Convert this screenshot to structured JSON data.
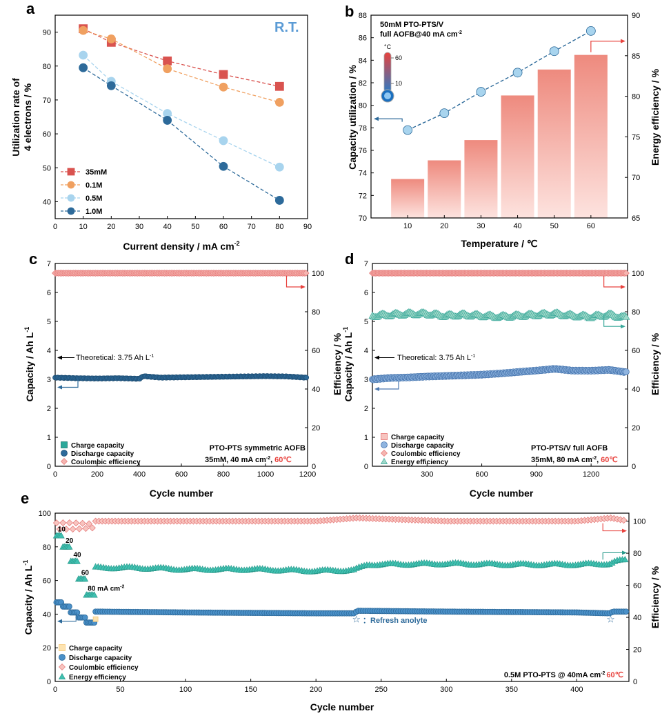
{
  "figure": {
    "panel_labels": [
      "a",
      "b",
      "c",
      "d",
      "e"
    ]
  },
  "colors": {
    "red": "#d9534f",
    "orange": "#f0a060",
    "lightblue": "#a8d4ee",
    "darkblue": "#2d6a9a",
    "pink": "#f08a8a",
    "teal": "#3aa89a",
    "blue": "#5f8fc0",
    "bar": "#ee8c80",
    "axis": "#000000",
    "rt": "#5b9bd5",
    "hot": "#e8423d",
    "yellow": "#f5c97a"
  },
  "chart_data": [
    {
      "panel": "a",
      "type": "line",
      "xlabel": "Current density / mA cm",
      "xlabel_sup": "-2",
      "ylabel": "Utilization rate of|4 electrons / %",
      "xlim": [
        0,
        90
      ],
      "ylim": [
        35,
        95
      ],
      "xticks": [
        0,
        10,
        20,
        30,
        40,
        50,
        60,
        70,
        80,
        90
      ],
      "yticks": [
        40,
        50,
        60,
        70,
        80,
        90
      ],
      "annotation": "R.T.",
      "x": [
        10,
        20,
        40,
        60,
        80
      ],
      "series": [
        {
          "name": "35mM",
          "marker": "square",
          "color": "red",
          "values": [
            91,
            87,
            81.5,
            77.5,
            74
          ]
        },
        {
          "name": "0.1M",
          "marker": "circle",
          "color": "orange",
          "values": [
            90.5,
            88,
            79.2,
            73.8,
            69.3
          ]
        },
        {
          "name": "0.5M",
          "marker": "circle",
          "color": "lightblue",
          "values": [
            83.2,
            75.5,
            66,
            58,
            50.2
          ]
        },
        {
          "name": "1.0M",
          "marker": "circle",
          "color": "darkblue",
          "values": [
            79.5,
            74.2,
            64,
            50.4,
            40.4
          ]
        }
      ]
    },
    {
      "panel": "b",
      "type": "bar+line",
      "xlabel": "Temperature / ℃",
      "ylabel_left": "Capacity utilization / %",
      "ylabel_right": "Energy efficiency / %",
      "text_line1": "50mM PTO-PTS/V",
      "text_line2": "full AOFB@40 mA cm",
      "text_sup": "-2",
      "thermometer_unit": "°C",
      "thermometer_ticks": [
        "60",
        "10"
      ],
      "categories": [
        10,
        20,
        30,
        40,
        50,
        60
      ],
      "xlim": [
        0,
        70
      ],
      "ylim_left": [
        70,
        88
      ],
      "ylim_right": [
        65,
        90
      ],
      "yticks_left": [
        70,
        72,
        74,
        76,
        78,
        80,
        82,
        84,
        86,
        88
      ],
      "yticks_right": [
        65,
        70,
        75,
        80,
        85,
        90
      ],
      "bar_values_energy_efficiency": [
        69.8,
        72.1,
        74.6,
        80.1,
        83.3,
        85.1
      ],
      "line_values_capacity_utilization": [
        77.8,
        79.3,
        81.2,
        82.9,
        84.8,
        86.6
      ]
    },
    {
      "panel": "c",
      "type": "scatter",
      "xlabel": "Cycle number",
      "ylabel_left": "Capacity / Ah L",
      "ylabel_left_sup": "-1",
      "ylabel_right": "Efficiency / %",
      "xlim": [
        0,
        1200
      ],
      "ylim_left": [
        0,
        7
      ],
      "ylim_right": [
        0,
        105
      ],
      "xticks": [
        0,
        200,
        400,
        600,
        800,
        1000,
        1200
      ],
      "yticks_left": [
        0,
        1,
        2,
        3,
        4,
        5,
        6,
        7
      ],
      "yticks_right": [
        0,
        20,
        40,
        60,
        80,
        100
      ],
      "theoretical_label": "Theoretical: 3.75 Ah L",
      "theoretical_sup": "-1",
      "theoretical_value": 3.75,
      "info_line1": "PTO-PTS symmetric AOFB",
      "info_line2": "35mM,  40 mA cm",
      "info_sup": "-2",
      "info_comma": ",",
      "info_temp": "60℃",
      "legend": [
        "Charge capacity",
        "Discharge capacity",
        "Coulombic efficiency"
      ],
      "series": [
        {
          "name": "Charge capacity",
          "axis": "left",
          "color": "teal",
          "marker": "square",
          "x": [
            0,
            100,
            200,
            300,
            400,
            420,
            500,
            600,
            700,
            800,
            900,
            1000,
            1100,
            1190
          ],
          "values": [
            3.07,
            3.05,
            3.04,
            3.05,
            3.03,
            3.12,
            3.07,
            3.08,
            3.09,
            3.1,
            3.11,
            3.12,
            3.11,
            3.07
          ]
        },
        {
          "name": "Discharge capacity",
          "axis": "left",
          "color": "darkblue",
          "marker": "circle",
          "x": [
            0,
            100,
            200,
            300,
            400,
            420,
            500,
            600,
            700,
            800,
            900,
            1000,
            1100,
            1190
          ],
          "values": [
            3.06,
            3.04,
            3.03,
            3.04,
            3.02,
            3.11,
            3.06,
            3.07,
            3.08,
            3.09,
            3.1,
            3.11,
            3.1,
            3.06
          ]
        },
        {
          "name": "Coulombic efficiency",
          "axis": "right",
          "color": "pink",
          "marker": "diamond",
          "x": [
            0,
            200,
            400,
            600,
            800,
            1000,
            1190
          ],
          "values": [
            100,
            100,
            100,
            100,
            100,
            100,
            100
          ]
        }
      ]
    },
    {
      "panel": "d",
      "type": "scatter",
      "xlabel": "Cycle number",
      "ylabel_left": "Capacity / Ah L",
      "ylabel_left_sup": "-1",
      "ylabel_right": "Efficiency / %",
      "xlim": [
        0,
        1400
      ],
      "ylim_left": [
        0,
        7
      ],
      "ylim_right": [
        0,
        105
      ],
      "xticks": [
        300,
        600,
        900,
        1200
      ],
      "yticks_left": [
        0,
        1,
        2,
        3,
        4,
        5,
        6,
        7
      ],
      "yticks_right": [
        0,
        20,
        40,
        60,
        80,
        100
      ],
      "theoretical_label": "Theoretical: 3.75 Ah L",
      "theoretical_sup": "-1",
      "theoretical_value": 3.75,
      "info_line1": "PTO-PTS/V full AOFB",
      "info_line2": "35mM, 80 mA cm",
      "info_sup": "-2",
      "info_comma": ",",
      "info_temp": "60℃",
      "legend": [
        "Charge capacity",
        "Discharge capacity",
        "Coulombic efficiency",
        "Energy efficiency"
      ],
      "series": [
        {
          "name": "Discharge capacity",
          "axis": "left",
          "color": "blue",
          "marker": "circle",
          "x": [
            0,
            100,
            200,
            300,
            400,
            500,
            600,
            700,
            800,
            900,
            1000,
            1100,
            1200,
            1300,
            1390
          ],
          "values": [
            3.0,
            3.05,
            3.07,
            3.1,
            3.12,
            3.14,
            3.16,
            3.2,
            3.25,
            3.3,
            3.36,
            3.3,
            3.3,
            3.33,
            3.25
          ]
        },
        {
          "name": "Coulombic efficiency",
          "axis": "right",
          "color": "pink",
          "marker": "diamond",
          "x": [
            0,
            200,
            400,
            600,
            800,
            1000,
            1200,
            1390
          ],
          "values": [
            100,
            100,
            100,
            100,
            100,
            100,
            100,
            100
          ]
        },
        {
          "name": "Energy efficiency",
          "axis": "right",
          "color": "teal",
          "marker": "triangle",
          "x": [
            0,
            100,
            200,
            300,
            400,
            500,
            600,
            700,
            800,
            900,
            1000,
            1100,
            1200,
            1300,
            1390
          ],
          "values": [
            78,
            78.5,
            79,
            79,
            78,
            78.5,
            78,
            77.5,
            78,
            78.5,
            79,
            78,
            77.5,
            78.5,
            77
          ]
        }
      ]
    },
    {
      "panel": "e",
      "type": "scatter",
      "xlabel": "Cycle number",
      "ylabel_left": "Capacity / Ah L",
      "ylabel_left_sup": "-1",
      "ylabel_right": "Efficiency / %",
      "xlim": [
        0,
        440
      ],
      "ylim_left": [
        0,
        100
      ],
      "ylim_right": [
        0,
        105
      ],
      "xticks": [
        0,
        50,
        100,
        150,
        200,
        250,
        300,
        350,
        400
      ],
      "yticks_left": [
        0,
        20,
        40,
        60,
        80,
        100
      ],
      "yticks_right": [
        0,
        20,
        40,
        60,
        80,
        100
      ],
      "rate_labels": [
        "10",
        "20",
        "40",
        "60",
        "80 mA cm"
      ],
      "rate_sup": "-2",
      "refresh_label": "：Refresh anolyte",
      "info_text": "0.5M PTO-PTS @ 40mA cm",
      "info_sup": "-2",
      "info_temp": "60℃",
      "legend": [
        "Charge capacity",
        "Discharge capacity",
        "Coulombic efficiency",
        "Energy efficiency"
      ],
      "rate_steps": [
        {
          "x_range": [
            1,
            5
          ],
          "capacity": 47,
          "energy_efficiency": 91
        },
        {
          "x_range": [
            6,
            11
          ],
          "capacity": 44.5,
          "energy_efficiency": 84
        },
        {
          "x_range": [
            12,
            17
          ],
          "capacity": 41,
          "energy_efficiency": 75
        },
        {
          "x_range": [
            18,
            23
          ],
          "capacity": 38,
          "energy_efficiency": 64
        },
        {
          "x_range": [
            24,
            30
          ],
          "capacity": 35,
          "energy_efficiency": 54
        }
      ],
      "discharge_capacity": {
        "x": [
          31,
          100,
          200,
          229,
          232,
          300,
          400,
          425,
          428,
          440
        ],
        "values": [
          41.5,
          41,
          40.5,
          40.5,
          42,
          41.5,
          41,
          40.5,
          41.5,
          41.5
        ]
      },
      "energy_efficiency": {
        "x": [
          31,
          60,
          100,
          150,
          200,
          229,
          240,
          300,
          350,
          400,
          425,
          430,
          440
        ],
        "values": [
          71,
          71,
          70,
          70,
          69,
          69.5,
          73,
          73.5,
          73,
          73,
          73.5,
          75,
          76
        ]
      },
      "coulombic_efficiency": {
        "x": [
          1,
          31,
          100,
          200,
          231,
          300,
          400,
          426,
          440
        ],
        "values": [
          99,
          100,
          100,
          100,
          102,
          100,
          100,
          102,
          100
        ]
      },
      "refresh_points": [
        {
          "x": 231,
          "capacity": 37
        },
        {
          "x": 426,
          "capacity": 37
        }
      ]
    }
  ]
}
